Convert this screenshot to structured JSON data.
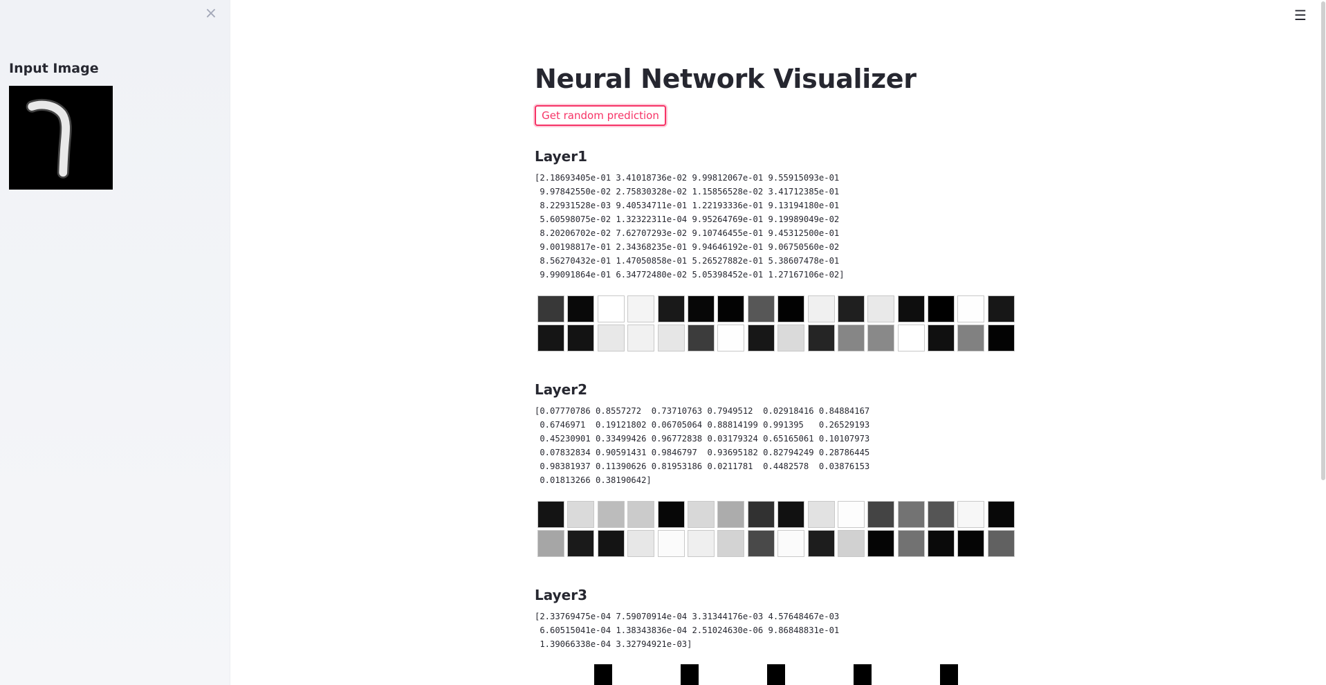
{
  "sidebar": {
    "close_glyph": "×",
    "title": "Input Image"
  },
  "menu_glyph": "☰",
  "main": {
    "title": "Neural Network Visualizer",
    "button_label": "Get random prediction"
  },
  "layers": [
    {
      "title": "Layer1",
      "values_text": "[2.18693405e-01 3.41018736e-02 9.99812067e-01 9.55915093e-01\n 9.97842550e-02 2.75830328e-02 1.15856528e-02 3.41712385e-01\n 8.22931528e-03 9.40534711e-01 1.22193336e-01 9.13194180e-01\n 5.60598075e-02 1.32322311e-04 9.95264769e-01 9.19989049e-02\n 8.20206702e-02 7.62707293e-02 9.10746455e-01 9.45312500e-01\n 9.00198817e-01 2.34368235e-01 9.94646192e-01 9.06750560e-02\n 8.56270432e-01 1.47050858e-01 5.26527882e-01 5.38607478e-01\n 9.99091864e-01 6.34772480e-02 5.05398452e-01 1.27167106e-02]",
      "activations": [
        0.218693405,
        0.0341018736,
        0.999812067,
        0.955915093,
        0.099784255,
        0.0275830328,
        0.0115856528,
        0.341712385,
        0.00822931528,
        0.940534711,
        0.122193336,
        0.91319418,
        0.0560598075,
        0.000132322311,
        0.995264769,
        0.0919989049,
        0.0820206702,
        0.0762707293,
        0.910746455,
        0.9453125,
        0.900198817,
        0.234368235,
        0.994646192,
        0.090675056,
        0.856270432,
        0.147050858,
        0.526527882,
        0.538607478,
        0.999091864,
        0.063477248,
        0.505398452,
        0.0127167106
      ]
    },
    {
      "title": "Layer2",
      "values_text": "[0.07770786 0.8557272  0.73710763 0.7949512  0.02918416 0.84884167\n 0.6746971  0.19121802 0.06705064 0.88814199 0.991395   0.26529193\n 0.45230901 0.33499426 0.96772838 0.03179324 0.65165061 0.10107973\n 0.07832834 0.90591431 0.9846797  0.93695182 0.82794249 0.28786445\n 0.98381937 0.11390626 0.81953186 0.0211781  0.4482578  0.03876153\n 0.01813266 0.38190642]",
      "activations": [
        0.07770786,
        0.8557272,
        0.73710763,
        0.7949512,
        0.02918416,
        0.84884167,
        0.6746971,
        0.19121802,
        0.06705064,
        0.88814199,
        0.991395,
        0.26529193,
        0.45230901,
        0.33499426,
        0.96772838,
        0.03179324,
        0.65165061,
        0.10107973,
        0.07832834,
        0.90591431,
        0.9846797,
        0.93695182,
        0.82794249,
        0.28786445,
        0.98381937,
        0.11390626,
        0.81953186,
        0.0211781,
        0.4482578,
        0.03876153,
        0.01813266,
        0.38190642
      ]
    },
    {
      "title": "Layer3",
      "values_text": "[2.33769475e-04 7.59070914e-04 3.31344176e-03 4.57648467e-03\n 6.60515041e-04 1.38343836e-04 2.51024630e-06 9.86848831e-01\n 1.39066338e-04 3.32794921e-03]",
      "activations": [
        0.000233769475,
        0.000759070914,
        0.00331344176,
        0.00457648467,
        0.000660515041,
        0.000138343836,
        2.5102463e-06,
        0.986848831,
        0.000139066338,
        0.00332794921
      ]
    }
  ]
}
